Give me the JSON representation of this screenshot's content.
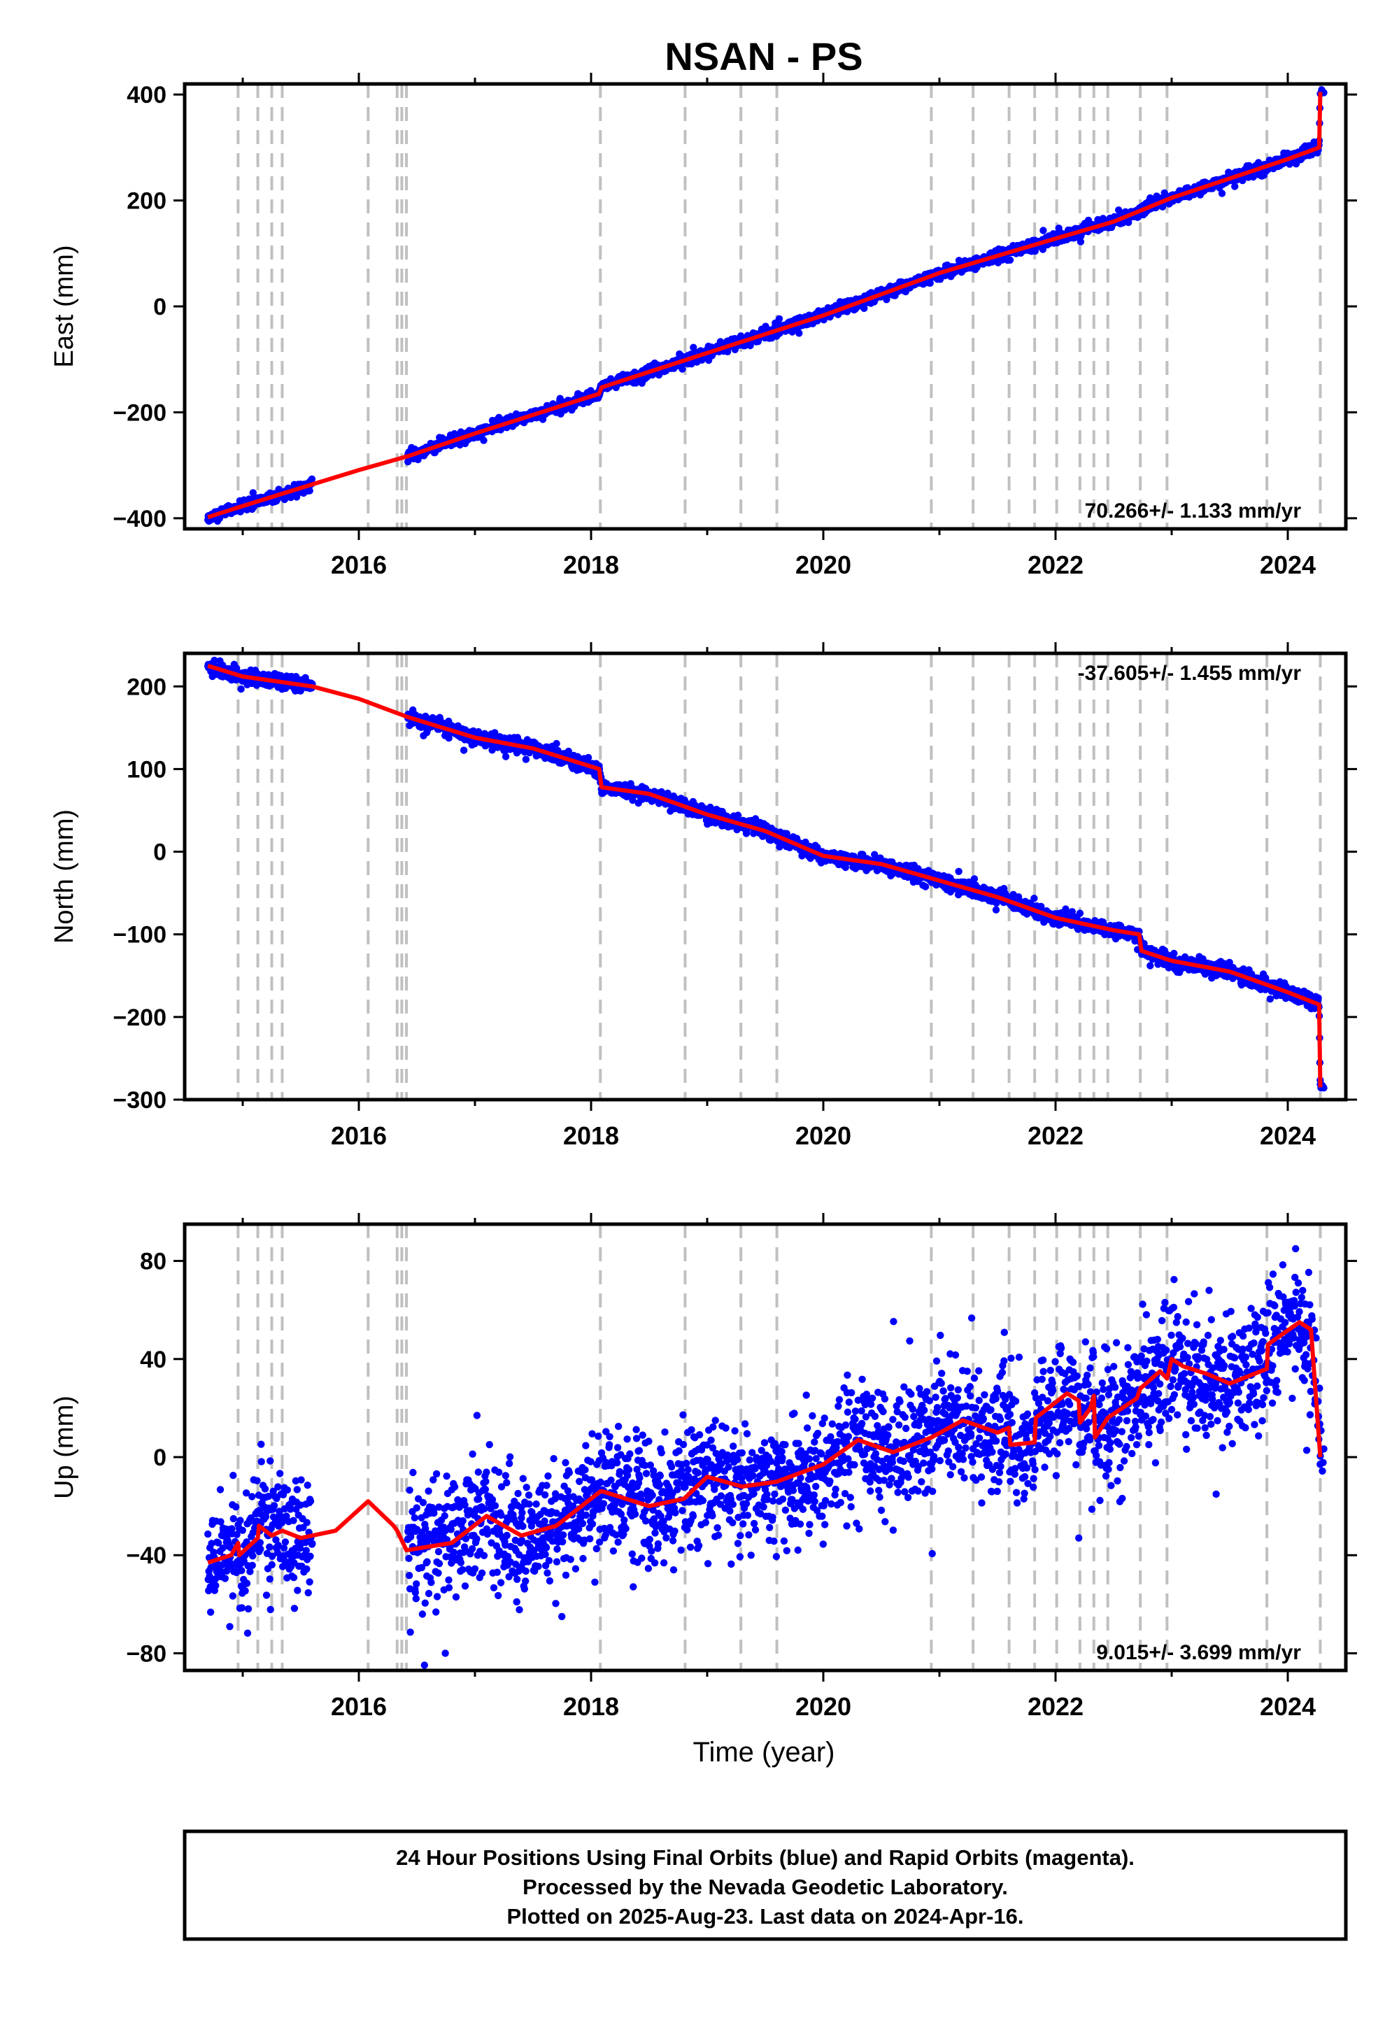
{
  "title": "NSAN - PS",
  "colors": {
    "data_points": "#0000ff",
    "model_line": "#ff0000",
    "event_lines": "#c0c0c0",
    "frame": "#000000"
  },
  "x_axis": {
    "label": "Time (year)",
    "range": [
      2014.5,
      2024.5
    ],
    "ticks": [
      2016,
      2018,
      2020,
      2022,
      2024
    ],
    "tick_labels": [
      "2016",
      "2018",
      "2020",
      "2022",
      "2024"
    ]
  },
  "chart_data": [
    {
      "type": "scatter",
      "ylabel": "East (mm)",
      "ylim": [
        -420,
        420
      ],
      "yticks": [
        -400,
        -200,
        0,
        200,
        400
      ],
      "ytick_labels": [
        "−400",
        "−200",
        "0",
        "200",
        "400"
      ],
      "rate_text": "70.266+/- 1.133 mm/yr",
      "rate_position": "bottom-right",
      "event_years": [
        2014.96,
        2015.13,
        2015.25,
        2015.34,
        2016.08,
        2016.33,
        2016.37,
        2016.41,
        2018.08,
        2018.81,
        2019.29,
        2019.6,
        2020.93,
        2021.29,
        2021.6,
        2021.82,
        2022.01,
        2022.21,
        2022.33,
        2022.45,
        2022.73,
        2022.96,
        2023.82,
        2024.28
      ],
      "data_segments": [
        {
          "start": 2014.7,
          "end": 2015.6
        },
        {
          "start": 2016.42,
          "end": 2024.28
        }
      ],
      "series": [
        {
          "name": "Final Orbits",
          "points": {
            "generator": "linear_plus_noise",
            "rate": 70.266,
            "ref_year": 2019.5,
            "ref_value": -50,
            "noise_mm": 5,
            "steps": [
              {
                "year": 2018.08,
                "offset": 10
              },
              {
                "year": 2024.29,
                "offset": 105
              }
            ]
          }
        },
        {
          "name": "Model",
          "line": [
            [
              2014.7,
              -398
            ],
            [
              2015.0,
              -377
            ],
            [
              2015.6,
              -336
            ],
            [
              2016.0,
              -309
            ],
            [
              2016.42,
              -283
            ],
            [
              2017.0,
              -240
            ],
            [
              2018.07,
              -165
            ],
            [
              2018.09,
              -153
            ],
            [
              2019.0,
              -88
            ],
            [
              2020.0,
              -17
            ],
            [
              2021.0,
              63
            ],
            [
              2022.0,
              128
            ],
            [
              2022.5,
              160
            ],
            [
              2023.0,
              205
            ],
            [
              2024.0,
              278
            ],
            [
              2024.27,
              300
            ],
            [
              2024.28,
              405
            ]
          ]
        }
      ]
    },
    {
      "type": "scatter",
      "ylabel": "North (mm)",
      "ylim": [
        -300,
        240
      ],
      "yticks": [
        -300,
        -200,
        -100,
        0,
        100,
        200
      ],
      "ytick_labels": [
        "−300",
        "−200",
        "−100",
        "0",
        "100",
        "200"
      ],
      "rate_text": "-37.605+/- 1.455 mm/yr",
      "rate_position": "top-right",
      "event_years": [
        2014.96,
        2015.13,
        2015.25,
        2015.34,
        2016.08,
        2016.33,
        2016.37,
        2016.41,
        2018.08,
        2018.81,
        2019.29,
        2019.6,
        2020.93,
        2021.29,
        2021.6,
        2021.82,
        2022.01,
        2022.21,
        2022.33,
        2022.45,
        2022.73,
        2022.96,
        2023.82,
        2024.28
      ],
      "data_segments": [
        {
          "start": 2014.7,
          "end": 2015.6
        },
        {
          "start": 2016.42,
          "end": 2024.28
        }
      ],
      "series": [
        {
          "name": "Final Orbits",
          "points": {
            "generator": "linear_plus_noise",
            "rate": -37.605,
            "ref_year": 2019.5,
            "ref_value": 5,
            "noise_mm": 4,
            "steps": [
              {
                "year": 2018.08,
                "offset": -22
              },
              {
                "year": 2022.73,
                "offset": -12
              },
              {
                "year": 2024.29,
                "offset": -95
              }
            ]
          }
        },
        {
          "name": "Model",
          "line": [
            [
              2014.7,
              225
            ],
            [
              2015.0,
              212
            ],
            [
              2015.6,
              200
            ],
            [
              2016.0,
              185
            ],
            [
              2016.42,
              163
            ],
            [
              2017.0,
              138
            ],
            [
              2017.5,
              125
            ],
            [
              2018.07,
              100
            ],
            [
              2018.09,
              78
            ],
            [
              2018.5,
              70
            ],
            [
              2019.0,
              45
            ],
            [
              2019.5,
              25
            ],
            [
              2020.0,
              -5
            ],
            [
              2020.5,
              -15
            ],
            [
              2021.0,
              -35
            ],
            [
              2021.5,
              -55
            ],
            [
              2022.0,
              -80
            ],
            [
              2022.5,
              -95
            ],
            [
              2022.72,
              -100
            ],
            [
              2022.74,
              -120
            ],
            [
              2023.0,
              -132
            ],
            [
              2023.5,
              -145
            ],
            [
              2024.0,
              -170
            ],
            [
              2024.27,
              -185
            ],
            [
              2024.28,
              -285
            ]
          ]
        }
      ]
    },
    {
      "type": "scatter",
      "xlabel": "Time (year)",
      "ylabel": "Up (mm)",
      "ylim": [
        -87,
        95
      ],
      "yticks": [
        -80,
        -40,
        0,
        40,
        80
      ],
      "ytick_labels": [
        "−80",
        "−40",
        "0",
        "40",
        "80"
      ],
      "rate_text": "9.015+/- 3.699 mm/yr",
      "rate_position": "bottom-right",
      "event_years": [
        2014.96,
        2015.13,
        2015.25,
        2015.34,
        2016.08,
        2016.33,
        2016.37,
        2016.41,
        2018.08,
        2018.81,
        2019.29,
        2019.6,
        2020.93,
        2021.29,
        2021.6,
        2021.82,
        2022.01,
        2022.21,
        2022.33,
        2022.45,
        2022.73,
        2022.96,
        2023.82,
        2024.28
      ],
      "data_segments": [
        {
          "start": 2014.7,
          "end": 2015.6
        },
        {
          "start": 2016.42,
          "end": 2024.28
        }
      ],
      "series": [
        {
          "name": "Final Orbits",
          "points": {
            "generator": "model_plus_noise",
            "noise_mm": 12
          }
        },
        {
          "name": "Model",
          "line": [
            [
              2014.7,
              -43
            ],
            [
              2014.9,
              -40
            ],
            [
              2014.96,
              -35
            ],
            [
              2014.97,
              -40
            ],
            [
              2015.13,
              -33
            ],
            [
              2015.14,
              -28
            ],
            [
              2015.25,
              -32
            ],
            [
              2015.34,
              -30
            ],
            [
              2015.5,
              -33
            ],
            [
              2015.8,
              -30
            ],
            [
              2016.08,
              -18
            ],
            [
              2016.3,
              -28
            ],
            [
              2016.33,
              -30
            ],
            [
              2016.37,
              -34
            ],
            [
              2016.41,
              -38
            ],
            [
              2016.8,
              -35
            ],
            [
              2017.1,
              -24
            ],
            [
              2017.4,
              -32
            ],
            [
              2017.7,
              -28
            ],
            [
              2018.08,
              -14
            ],
            [
              2018.1,
              -14
            ],
            [
              2018.5,
              -20
            ],
            [
              2018.8,
              -17
            ],
            [
              2019.0,
              -8
            ],
            [
              2019.3,
              -12
            ],
            [
              2019.6,
              -10
            ],
            [
              2020.0,
              -3
            ],
            [
              2020.3,
              7
            ],
            [
              2020.6,
              2
            ],
            [
              2020.93,
              8
            ],
            [
              2021.2,
              15
            ],
            [
              2021.5,
              10
            ],
            [
              2021.6,
              12
            ],
            [
              2021.61,
              5
            ],
            [
              2021.82,
              6
            ],
            [
              2021.83,
              16
            ],
            [
              2022.1,
              26
            ],
            [
              2022.2,
              23
            ],
            [
              2022.21,
              14
            ],
            [
              2022.3,
              20
            ],
            [
              2022.33,
              25
            ],
            [
              2022.34,
              8
            ],
            [
              2022.45,
              16
            ],
            [
              2022.7,
              24
            ],
            [
              2022.73,
              28
            ],
            [
              2022.9,
              35
            ],
            [
              2022.96,
              32
            ],
            [
              2023.0,
              40
            ],
            [
              2023.1,
              37
            ],
            [
              2023.3,
              34
            ],
            [
              2023.5,
              30
            ],
            [
              2023.82,
              36
            ],
            [
              2023.83,
              46
            ],
            [
              2024.1,
              55
            ],
            [
              2024.2,
              52
            ],
            [
              2024.28,
              0
            ]
          ]
        }
      ]
    }
  ],
  "footer": {
    "line1": "24 Hour Positions Using Final Orbits (blue) and Rapid Orbits (magenta).",
    "line2": "Processed by the Nevada Geodetic Laboratory.",
    "line3": "Plotted on 2025-Aug-23. Last data on 2024-Apr-16."
  }
}
